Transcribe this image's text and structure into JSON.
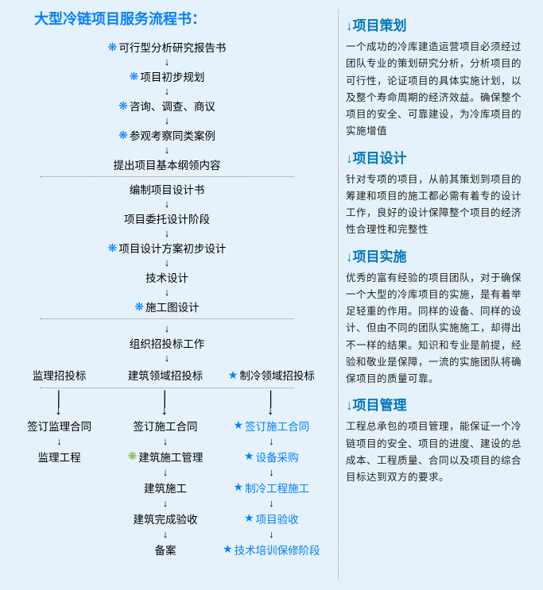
{
  "title": "大型冷链项目服务流程书：",
  "flow_top": [
    {
      "bullet": true,
      "text": "可行型分析研究报告书"
    },
    {
      "bullet": true,
      "text": "项目初步规划"
    },
    {
      "bullet": true,
      "text": "咨询、调查、商议"
    },
    {
      "bullet": true,
      "text": "参观考察同类案例"
    },
    {
      "bullet": false,
      "text": "提出项目基本纲领内容"
    }
  ],
  "flow_mid": [
    {
      "bullet": false,
      "text": "编制项目设计书"
    },
    {
      "bullet": false,
      "text": "项目委托设计阶段"
    },
    {
      "bullet": true,
      "text": "项目设计方案初步设计"
    },
    {
      "bullet": false,
      "text": "技术设计"
    },
    {
      "bullet": true,
      "text": "施工图设计"
    }
  ],
  "bid_label": "组织招投标工作",
  "col_headers": {
    "left": "监理招投标",
    "mid": "建筑领域招投标",
    "right": "制冷领域招投标"
  },
  "col_left": [
    "签订监理合同",
    "监理工程"
  ],
  "col_mid": [
    {
      "text": "签订施工合同",
      "green": false
    },
    {
      "text": "建筑施工管理",
      "green": true
    },
    {
      "text": "建筑施工",
      "green": false
    },
    {
      "text": "建筑完成验收",
      "green": false
    },
    {
      "text": "备案",
      "green": false
    }
  ],
  "col_right": [
    "签订施工合同",
    "设备采购",
    "制冷工程施工",
    "项目验收",
    "技术培训保修阶段"
  ],
  "sections": [
    {
      "title": "↓项目策划",
      "text": "一个成功的冷库建造运营项目必须经过团队专业的策划研究分析，分析项目的可行性，论证项目的具体实施计划，以及整个寿命周期的经济效益。确保整个项目的安全、可靠建设，为冷库项目的实施增值"
    },
    {
      "title": "↓项目设计",
      "text": "针对专项的项目，从前其策划到项目的筹建和项目的施工都必需有着专的设计工作，良好的设计保障整个项目的经济性合理性和完整性"
    },
    {
      "title": "↓项目实施",
      "text": "优秀的富有经验的项目团队，对于确保一个大型的冷库项目的实施，是有着举足轻重的作用。同样的设备、同样的设计、但由不同的团队实施施工，却得出不一样的结果。知识和专业是前提，经验和敬业是保障，一流的实施团队将确保项目的质量可靠。"
    },
    {
      "title": "↓项目管理",
      "text": "工程总承包的项目管理，能保证一个冷链项目的安全、项目的进度、建设的总成本、工程质量、合同以及项目的综合目标达到双方的要求。"
    }
  ],
  "colors": {
    "bg": "#e6f2fb",
    "blue": "#0080ff",
    "title_blue": "#0277bd",
    "green": "#7cb342"
  }
}
